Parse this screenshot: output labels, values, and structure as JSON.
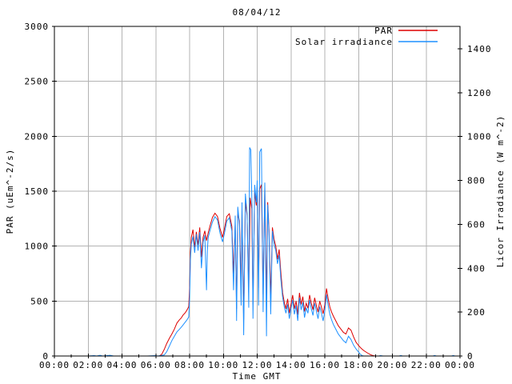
{
  "title": "08/04/12",
  "legend": [
    {
      "label": "PAR",
      "color": "#dd0000"
    },
    {
      "label": "Solar irradiance",
      "color": "#1e90ff"
    }
  ],
  "axes": {
    "x": {
      "label": "Time GMT",
      "tick_labels": [
        "00:00",
        "02:00",
        "04:00",
        "06:00",
        "08:00",
        "10:00",
        "12:00",
        "14:00",
        "16:00",
        "18:00",
        "20:00",
        "22:00",
        "00:00"
      ],
      "tick_hours": [
        0,
        2,
        4,
        6,
        8,
        10,
        12,
        14,
        16,
        18,
        20,
        22,
        24
      ],
      "minor_hours": [
        1,
        3,
        5,
        7,
        9,
        11,
        13,
        15,
        17,
        19,
        21,
        23
      ],
      "range_hours": [
        0,
        24
      ]
    },
    "y_left": {
      "label": "PAR (uEm^-2/s)",
      "tick_values": [
        0,
        500,
        1000,
        1500,
        2000,
        2500,
        3000
      ],
      "range": [
        0,
        3000
      ]
    },
    "y_right": {
      "label": "Licor Irradiance (W m^-2)",
      "tick_values": [
        0,
        200,
        400,
        600,
        800,
        1000,
        1200,
        1400
      ],
      "range": [
        0,
        1502
      ]
    }
  },
  "colors": {
    "grid": "#b3b3b3",
    "frame": "#000000",
    "background": "#ffffff"
  },
  "chart_data": {
    "type": "line",
    "title": "08/04/12",
    "xlabel": "Time GMT",
    "x_unit": "hours",
    "grid": "on",
    "legend_position": "top-right-inside",
    "y_left_label": "PAR (uEm^-2/s)",
    "y_right_label": "Licor Irradiance (W m^-2)",
    "y_left_range": [
      0,
      3000
    ],
    "y_right_range": [
      0,
      1502
    ],
    "series": [
      {
        "name": "PAR",
        "axis": "left",
        "color": "#dd0000",
        "units": "uEm^-2/s",
        "points": [
          [
            0,
            0
          ],
          [
            1,
            0
          ],
          [
            2,
            0
          ],
          [
            3,
            0
          ],
          [
            4,
            0
          ],
          [
            5,
            0
          ],
          [
            5.5,
            0
          ],
          [
            6.0,
            0
          ],
          [
            6.2,
            0
          ],
          [
            6.35,
            15
          ],
          [
            6.5,
            60
          ],
          [
            6.65,
            115
          ],
          [
            6.8,
            160
          ],
          [
            6.95,
            200
          ],
          [
            7.1,
            245
          ],
          [
            7.25,
            300
          ],
          [
            7.4,
            330
          ],
          [
            7.5,
            345
          ],
          [
            7.6,
            370
          ],
          [
            7.75,
            395
          ],
          [
            7.85,
            420
          ],
          [
            7.95,
            450
          ],
          [
            8.0,
            620
          ],
          [
            8.05,
            950
          ],
          [
            8.1,
            1080
          ],
          [
            8.2,
            1150
          ],
          [
            8.3,
            990
          ],
          [
            8.4,
            1130
          ],
          [
            8.5,
            1010
          ],
          [
            8.6,
            1170
          ],
          [
            8.7,
            900
          ],
          [
            8.8,
            1080
          ],
          [
            8.9,
            1140
          ],
          [
            9.0,
            1050
          ],
          [
            9.1,
            1120
          ],
          [
            9.2,
            1180
          ],
          [
            9.35,
            1260
          ],
          [
            9.5,
            1300
          ],
          [
            9.65,
            1270
          ],
          [
            9.8,
            1160
          ],
          [
            9.95,
            1080
          ],
          [
            10.05,
            1150
          ],
          [
            10.2,
            1270
          ],
          [
            10.35,
            1295
          ],
          [
            10.5,
            1180
          ],
          [
            10.6,
            750
          ],
          [
            10.7,
            1200
          ],
          [
            10.78,
            430
          ],
          [
            10.85,
            1290
          ],
          [
            10.95,
            1230
          ],
          [
            11.05,
            620
          ],
          [
            11.1,
            1340
          ],
          [
            11.2,
            330
          ],
          [
            11.3,
            1400
          ],
          [
            11.4,
            1280
          ],
          [
            11.5,
            580
          ],
          [
            11.58,
            1440
          ],
          [
            11.68,
            1340
          ],
          [
            11.75,
            470
          ],
          [
            11.85,
            1490
          ],
          [
            11.95,
            1370
          ],
          [
            12.0,
            1550
          ],
          [
            12.08,
            620
          ],
          [
            12.15,
            1520
          ],
          [
            12.25,
            1560
          ],
          [
            12.35,
            560
          ],
          [
            12.45,
            1530
          ],
          [
            12.55,
            500
          ],
          [
            12.62,
            1400
          ],
          [
            12.7,
            1150
          ],
          [
            12.8,
            520
          ],
          [
            12.9,
            1170
          ],
          [
            13.0,
            1060
          ],
          [
            13.1,
            1000
          ],
          [
            13.2,
            880
          ],
          [
            13.3,
            970
          ],
          [
            13.4,
            760
          ],
          [
            13.5,
            580
          ],
          [
            13.6,
            490
          ],
          [
            13.7,
            430
          ],
          [
            13.8,
            520
          ],
          [
            13.9,
            390
          ],
          [
            14.0,
            470
          ],
          [
            14.1,
            555
          ],
          [
            14.2,
            430
          ],
          [
            14.3,
            500
          ],
          [
            14.4,
            375
          ],
          [
            14.5,
            575
          ],
          [
            14.6,
            470
          ],
          [
            14.7,
            540
          ],
          [
            14.8,
            405
          ],
          [
            14.9,
            480
          ],
          [
            15.0,
            435
          ],
          [
            15.1,
            555
          ],
          [
            15.2,
            480
          ],
          [
            15.3,
            420
          ],
          [
            15.4,
            530
          ],
          [
            15.5,
            460
          ],
          [
            15.6,
            400
          ],
          [
            15.7,
            500
          ],
          [
            15.8,
            445
          ],
          [
            15.9,
            385
          ],
          [
            16.0,
            465
          ],
          [
            16.1,
            615
          ],
          [
            16.2,
            520
          ],
          [
            16.3,
            445
          ],
          [
            16.4,
            400
          ],
          [
            16.5,
            365
          ],
          [
            16.6,
            335
          ],
          [
            16.7,
            305
          ],
          [
            16.8,
            275
          ],
          [
            16.95,
            245
          ],
          [
            17.1,
            215
          ],
          [
            17.25,
            200
          ],
          [
            17.4,
            255
          ],
          [
            17.55,
            235
          ],
          [
            17.7,
            175
          ],
          [
            17.85,
            125
          ],
          [
            18.0,
            95
          ],
          [
            18.15,
            70
          ],
          [
            18.3,
            50
          ],
          [
            18.5,
            30
          ],
          [
            18.7,
            12
          ],
          [
            18.85,
            4
          ],
          [
            19.0,
            0
          ],
          [
            19.5,
            0
          ],
          [
            20,
            0
          ],
          [
            21,
            0
          ],
          [
            22,
            0
          ],
          [
            23,
            0
          ],
          [
            24,
            0
          ]
        ]
      },
      {
        "name": "Solar irradiance",
        "axis": "right",
        "color": "#1e90ff",
        "units": "W m^-2",
        "points": [
          [
            0,
            0
          ],
          [
            1,
            0
          ],
          [
            2,
            0
          ],
          [
            2.35,
            2
          ],
          [
            2.5,
            0
          ],
          [
            2.7,
            3
          ],
          [
            2.85,
            0
          ],
          [
            3.1,
            2
          ],
          [
            3.3,
            3
          ],
          [
            3.5,
            0
          ],
          [
            4,
            0
          ],
          [
            4.5,
            0
          ],
          [
            5,
            0
          ],
          [
            5.5,
            0
          ],
          [
            6.0,
            2
          ],
          [
            6.1,
            0
          ],
          [
            6.3,
            2
          ],
          [
            6.5,
            5
          ],
          [
            6.65,
            20
          ],
          [
            6.8,
            45
          ],
          [
            6.95,
            70
          ],
          [
            7.1,
            90
          ],
          [
            7.25,
            110
          ],
          [
            7.4,
            122
          ],
          [
            7.55,
            135
          ],
          [
            7.7,
            150
          ],
          [
            7.85,
            165
          ],
          [
            7.95,
            178
          ],
          [
            8.0,
            260
          ],
          [
            8.05,
            440
          ],
          [
            8.1,
            510
          ],
          [
            8.2,
            545
          ],
          [
            8.3,
            470
          ],
          [
            8.4,
            555
          ],
          [
            8.5,
            480
          ],
          [
            8.6,
            565
          ],
          [
            8.7,
            400
          ],
          [
            8.8,
            520
          ],
          [
            8.9,
            550
          ],
          [
            9.0,
            300
          ],
          [
            9.05,
            480
          ],
          [
            9.1,
            540
          ],
          [
            9.2,
            570
          ],
          [
            9.35,
            610
          ],
          [
            9.5,
            635
          ],
          [
            9.65,
            620
          ],
          [
            9.8,
            560
          ],
          [
            9.95,
            520
          ],
          [
            10.05,
            555
          ],
          [
            10.2,
            615
          ],
          [
            10.35,
            630
          ],
          [
            10.5,
            570
          ],
          [
            10.6,
            300
          ],
          [
            10.7,
            640
          ],
          [
            10.78,
            160
          ],
          [
            10.85,
            680
          ],
          [
            10.95,
            600
          ],
          [
            11.05,
            230
          ],
          [
            11.1,
            700
          ],
          [
            11.2,
            95
          ],
          [
            11.3,
            740
          ],
          [
            11.4,
            650
          ],
          [
            11.5,
            220
          ],
          [
            11.55,
            950
          ],
          [
            11.62,
            940
          ],
          [
            11.7,
            660
          ],
          [
            11.75,
            170
          ],
          [
            11.85,
            780
          ],
          [
            11.95,
            700
          ],
          [
            12.0,
            800
          ],
          [
            12.08,
            230
          ],
          [
            12.15,
            930
          ],
          [
            12.25,
            945
          ],
          [
            12.35,
            200
          ],
          [
            12.45,
            790
          ],
          [
            12.55,
            90
          ],
          [
            12.62,
            690
          ],
          [
            12.7,
            560
          ],
          [
            12.8,
            190
          ],
          [
            12.9,
            570
          ],
          [
            13.0,
            510
          ],
          [
            13.1,
            480
          ],
          [
            13.2,
            420
          ],
          [
            13.3,
            460
          ],
          [
            13.4,
            350
          ],
          [
            13.5,
            270
          ],
          [
            13.6,
            225
          ],
          [
            13.7,
            195
          ],
          [
            13.8,
            235
          ],
          [
            13.9,
            170
          ],
          [
            14.0,
            215
          ],
          [
            14.1,
            255
          ],
          [
            14.2,
            190
          ],
          [
            14.3,
            230
          ],
          [
            14.4,
            160
          ],
          [
            14.5,
            265
          ],
          [
            14.6,
            210
          ],
          [
            14.7,
            245
          ],
          [
            14.8,
            175
          ],
          [
            14.9,
            220
          ],
          [
            15.0,
            195
          ],
          [
            15.1,
            255
          ],
          [
            15.2,
            215
          ],
          [
            15.3,
            185
          ],
          [
            15.4,
            240
          ],
          [
            15.5,
            205
          ],
          [
            15.6,
            170
          ],
          [
            15.7,
            225
          ],
          [
            15.8,
            195
          ],
          [
            15.9,
            160
          ],
          [
            16.0,
            205
          ],
          [
            16.1,
            280
          ],
          [
            16.2,
            230
          ],
          [
            16.3,
            190
          ],
          [
            16.4,
            165
          ],
          [
            16.5,
            145
          ],
          [
            16.6,
            130
          ],
          [
            16.7,
            115
          ],
          [
            16.8,
            100
          ],
          [
            16.95,
            85
          ],
          [
            17.1,
            70
          ],
          [
            17.25,
            60
          ],
          [
            17.4,
            90
          ],
          [
            17.55,
            75
          ],
          [
            17.7,
            50
          ],
          [
            17.85,
            32
          ],
          [
            18.0,
            18
          ],
          [
            18.1,
            8
          ],
          [
            18.2,
            2
          ],
          [
            18.3,
            0
          ],
          [
            19.2,
            0
          ],
          [
            19.3,
            2
          ],
          [
            19.45,
            0
          ],
          [
            20.4,
            0
          ],
          [
            20.5,
            2
          ],
          [
            20.6,
            0
          ],
          [
            22.4,
            0
          ],
          [
            22.5,
            2
          ],
          [
            22.6,
            0
          ],
          [
            23.5,
            0
          ],
          [
            23.6,
            2
          ],
          [
            23.7,
            0
          ],
          [
            24,
            0
          ]
        ]
      }
    ]
  }
}
